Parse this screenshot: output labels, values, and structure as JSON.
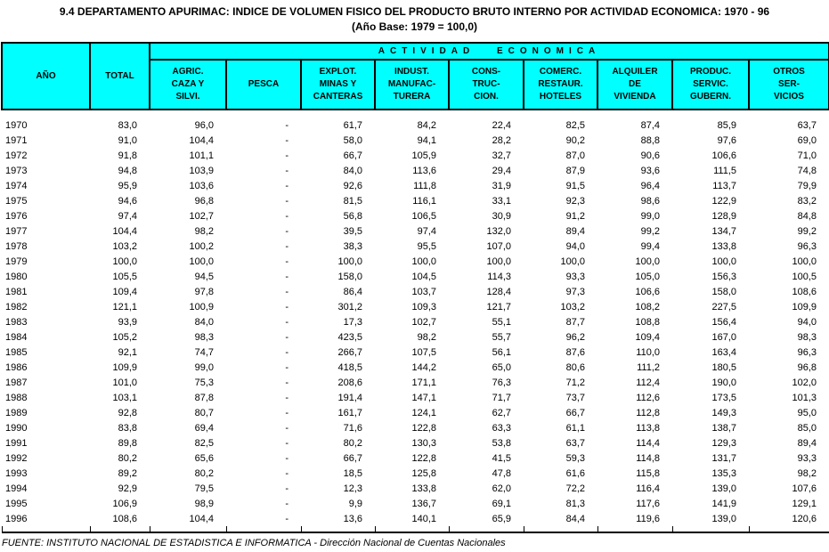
{
  "title": {
    "line1": "9.4  DEPARTAMENTO APURIMAC: INDICE DE VOLUMEN FISICO DEL PRODUCTO BRUTO INTERNO POR ACTIVIDAD ECONOMICA: 1970 - 96",
    "line2": "(Año Base: 1979 = 100,0)"
  },
  "colors": {
    "header_fill": "#00FFFF",
    "border": "#000000",
    "background": "#FFFFFF"
  },
  "table": {
    "header": {
      "year": "AÑO",
      "total": "TOTAL",
      "group": "ACTIVIDAD ECONOMICA",
      "activities": [
        {
          "id": "agric-caza-silvi",
          "lines": [
            "AGRIC.",
            "CAZA Y",
            "SILVI."
          ]
        },
        {
          "id": "pesca",
          "lines": [
            "PESCA"
          ]
        },
        {
          "id": "explot-minas-canteras",
          "lines": [
            "EXPLOT.",
            "MINAS Y",
            "CANTERAS"
          ]
        },
        {
          "id": "indust-manufacturera",
          "lines": [
            "INDUST.",
            "MANUFAC-",
            "TURERA"
          ]
        },
        {
          "id": "construccion",
          "lines": [
            "CONS-",
            "TRUC-",
            "CION."
          ]
        },
        {
          "id": "comerc-restaur-hoteles",
          "lines": [
            "COMERC.",
            "RESTAUR.",
            "HOTELES"
          ]
        },
        {
          "id": "alquiler-vivienda",
          "lines": [
            "ALQUILER",
            "DE",
            "VIVIENDA"
          ]
        },
        {
          "id": "produc-servic-gubern",
          "lines": [
            "PRODUC.",
            "SERVIC.",
            "GUBERN."
          ]
        },
        {
          "id": "otros-servicios",
          "lines": [
            "OTROS",
            "SER-",
            "VICIOS"
          ]
        }
      ]
    },
    "rows": [
      {
        "year": "1970",
        "values": [
          "83,0",
          "96,0",
          "-",
          "61,7",
          "84,2",
          "22,4",
          "82,5",
          "87,4",
          "85,9",
          "63,7"
        ]
      },
      {
        "year": "1971",
        "values": [
          "91,0",
          "104,4",
          "-",
          "58,0",
          "94,1",
          "28,2",
          "90,2",
          "88,8",
          "97,6",
          "69,0"
        ]
      },
      {
        "year": "1972",
        "values": [
          "91,8",
          "101,1",
          "-",
          "66,7",
          "105,9",
          "32,7",
          "87,0",
          "90,6",
          "106,6",
          "71,0"
        ]
      },
      {
        "year": "1973",
        "values": [
          "94,8",
          "103,9",
          "-",
          "84,0",
          "113,6",
          "29,4",
          "87,9",
          "93,6",
          "111,5",
          "74,8"
        ]
      },
      {
        "year": "1974",
        "values": [
          "95,9",
          "103,6",
          "-",
          "92,6",
          "111,8",
          "31,9",
          "91,5",
          "96,4",
          "113,7",
          "79,9"
        ]
      },
      {
        "year": "1975",
        "values": [
          "94,6",
          "96,8",
          "-",
          "81,5",
          "116,1",
          "33,1",
          "92,3",
          "98,6",
          "122,9",
          "83,2"
        ]
      },
      {
        "year": "1976",
        "values": [
          "97,4",
          "102,7",
          "-",
          "56,8",
          "106,5",
          "30,9",
          "91,2",
          "99,0",
          "128,9",
          "84,8"
        ]
      },
      {
        "year": "1977",
        "values": [
          "104,4",
          "98,2",
          "-",
          "39,5",
          "97,4",
          "132,0",
          "89,4",
          "99,2",
          "134,7",
          "99,2"
        ]
      },
      {
        "year": "1978",
        "values": [
          "103,2",
          "100,2",
          "-",
          "38,3",
          "95,5",
          "107,0",
          "94,0",
          "99,4",
          "133,8",
          "96,3"
        ]
      },
      {
        "year": "1979",
        "values": [
          "100,0",
          "100,0",
          "-",
          "100,0",
          "100,0",
          "100,0",
          "100,0",
          "100,0",
          "100,0",
          "100,0"
        ]
      },
      {
        "year": "1980",
        "values": [
          "105,5",
          "94,5",
          "-",
          "158,0",
          "104,5",
          "114,3",
          "93,3",
          "105,0",
          "156,3",
          "100,5"
        ]
      },
      {
        "year": "1981",
        "values": [
          "109,4",
          "97,8",
          "-",
          "86,4",
          "103,7",
          "128,4",
          "97,3",
          "106,6",
          "158,0",
          "108,6"
        ]
      },
      {
        "year": "1982",
        "values": [
          "121,1",
          "100,9",
          "-",
          "301,2",
          "109,3",
          "121,7",
          "103,2",
          "108,2",
          "227,5",
          "109,9"
        ]
      },
      {
        "year": "1983",
        "values": [
          "93,9",
          "84,0",
          "-",
          "17,3",
          "102,7",
          "55,1",
          "87,7",
          "108,8",
          "156,4",
          "94,0"
        ]
      },
      {
        "year": "1984",
        "values": [
          "105,2",
          "98,3",
          "-",
          "423,5",
          "98,2",
          "55,7",
          "96,2",
          "109,4",
          "167,0",
          "98,3"
        ]
      },
      {
        "year": "1985",
        "values": [
          "92,1",
          "74,7",
          "-",
          "266,7",
          "107,5",
          "56,1",
          "87,6",
          "110,0",
          "163,4",
          "96,3"
        ]
      },
      {
        "year": "1986",
        "values": [
          "109,9",
          "99,0",
          "-",
          "418,5",
          "144,2",
          "65,0",
          "80,6",
          "111,2",
          "180,5",
          "96,8"
        ]
      },
      {
        "year": "1987",
        "values": [
          "101,0",
          "75,3",
          "-",
          "208,6",
          "171,1",
          "76,3",
          "71,2",
          "112,4",
          "190,0",
          "102,0"
        ]
      },
      {
        "year": "1988",
        "values": [
          "103,1",
          "87,8",
          "-",
          "191,4",
          "147,1",
          "71,7",
          "73,7",
          "112,6",
          "173,5",
          "101,3"
        ]
      },
      {
        "year": "1989",
        "values": [
          "92,8",
          "80,7",
          "-",
          "161,7",
          "124,1",
          "62,7",
          "66,7",
          "112,8",
          "149,3",
          "95,0"
        ]
      },
      {
        "year": "1990",
        "values": [
          "83,8",
          "69,4",
          "-",
          "71,6",
          "122,8",
          "63,3",
          "61,1",
          "113,8",
          "138,7",
          "85,0"
        ]
      },
      {
        "year": "1991",
        "values": [
          "89,8",
          "82,5",
          "-",
          "80,2",
          "130,3",
          "53,8",
          "63,7",
          "114,4",
          "129,3",
          "89,4"
        ]
      },
      {
        "year": "1992",
        "values": [
          "80,2",
          "65,6",
          "-",
          "66,7",
          "122,8",
          "41,5",
          "59,3",
          "114,8",
          "131,7",
          "93,3"
        ]
      },
      {
        "year": "1993",
        "values": [
          "89,2",
          "80,2",
          "-",
          "18,5",
          "125,8",
          "47,8",
          "61,6",
          "115,8",
          "135,3",
          "98,2"
        ]
      },
      {
        "year": "1994",
        "values": [
          "92,9",
          "79,5",
          "-",
          "12,3",
          "133,8",
          "62,0",
          "72,2",
          "116,4",
          "139,0",
          "107,6"
        ]
      },
      {
        "year": "1995",
        "values": [
          "106,9",
          "98,9",
          "-",
          "9,9",
          "136,7",
          "69,1",
          "81,3",
          "117,6",
          "141,9",
          "129,1"
        ]
      },
      {
        "year": "1996",
        "values": [
          "108,6",
          "104,4",
          "-",
          "13,6",
          "140,1",
          "65,9",
          "84,4",
          "119,6",
          "139,0",
          "120,6"
        ]
      }
    ]
  },
  "footer": "FUENTE: INSTITUTO NACIONAL DE ESTADISTICA E INFORMATICA - Dirección Nacional de Cuentas Nacionales"
}
